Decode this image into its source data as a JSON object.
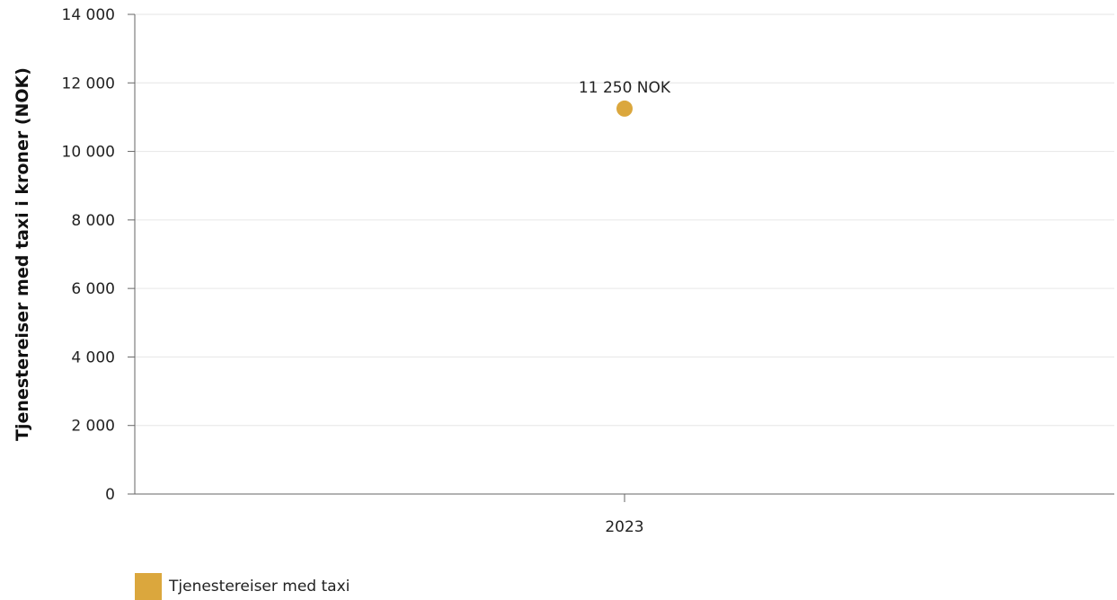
{
  "chart_data": {
    "type": "scatter",
    "categories": [
      "2023"
    ],
    "series": [
      {
        "name": "Tjenestereiser med taxi",
        "values": [
          11250
        ],
        "labels": [
          "11 250 NOK"
        ]
      }
    ],
    "ylabel": "Tjenestereiser med taxi i kroner (NOK)",
    "xlabel": "",
    "ylim": [
      0,
      14000
    ],
    "yticks": [
      0,
      2000,
      4000,
      6000,
      8000,
      10000,
      12000,
      14000
    ],
    "ytick_labels": [
      "0",
      "2 000",
      "4 000",
      "6 000",
      "8 000",
      "10 000",
      "12 000",
      "14 000"
    ],
    "grid": true,
    "legend_position": "bottom-left",
    "colors": {
      "series": "#DBA73D",
      "grid": "#e6e6e6",
      "axis": "#666666"
    }
  }
}
